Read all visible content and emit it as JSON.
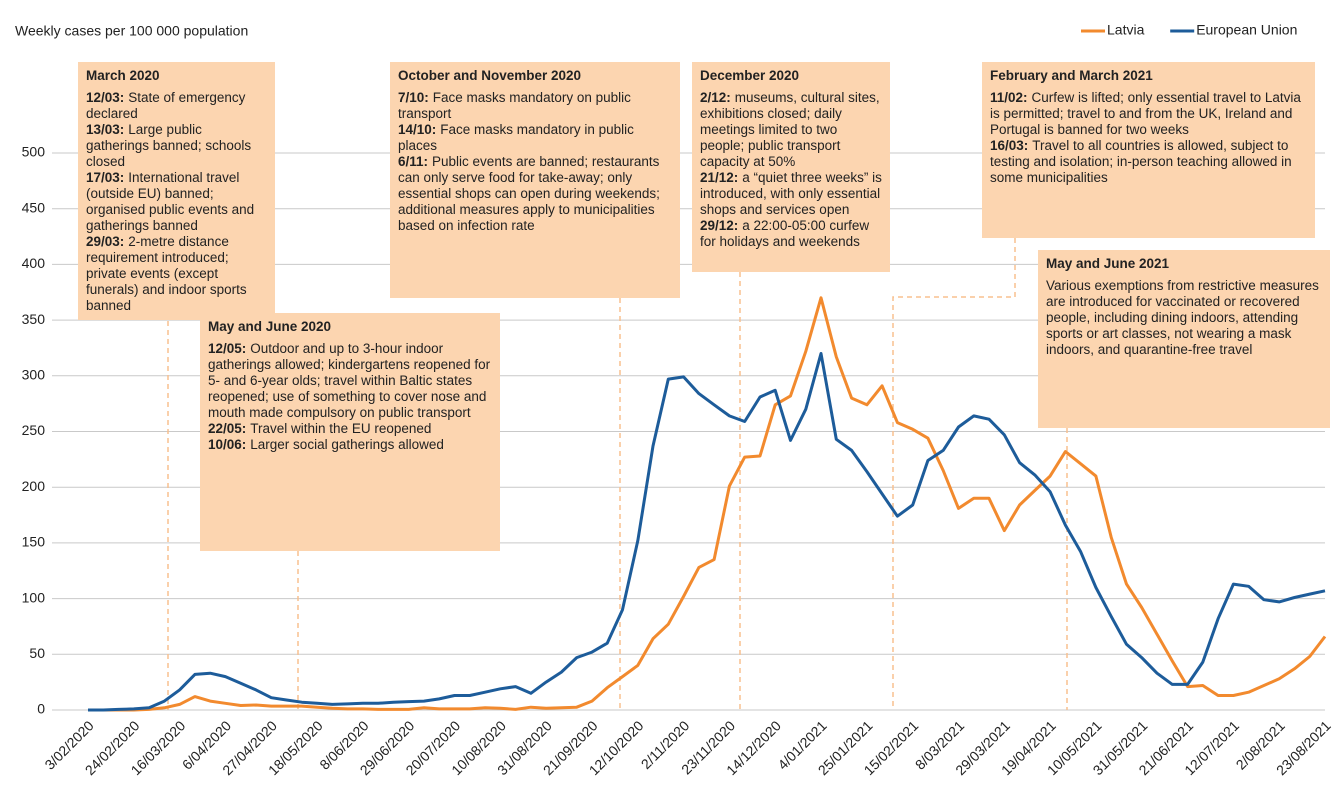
{
  "chart_data": {
    "type": "line",
    "y_label": "Weekly cases per 100 000 population",
    "legend": "top-right",
    "grid": true,
    "ylim": [
      0,
      500
    ],
    "yticks": [
      0,
      50,
      100,
      150,
      200,
      250,
      300,
      350,
      400,
      450,
      500
    ],
    "categories": [
      "3/02/2020",
      null,
      null,
      "24/02/2020",
      null,
      null,
      "16/03/2020",
      null,
      null,
      "6/04/2020",
      null,
      null,
      "27/04/2020",
      null,
      null,
      "18/05/2020",
      null,
      null,
      "8/06/2020",
      null,
      null,
      "29/06/2020",
      null,
      null,
      "20/07/2020",
      null,
      null,
      "10/08/2020",
      null,
      null,
      "31/08/2020",
      null,
      null,
      "21/09/2020",
      null,
      null,
      "12/10/2020",
      null,
      null,
      "2/11/2020",
      null,
      null,
      "23/11/2020",
      null,
      null,
      "14/12/2020",
      null,
      null,
      "4/01/2021",
      null,
      null,
      "25/01/2021",
      null,
      null,
      "15/02/2021",
      null,
      null,
      "8/03/2021",
      null,
      null,
      "29/03/2021",
      null,
      null,
      "19/04/2021",
      null,
      null,
      "10/05/2021",
      null,
      null,
      "31/05/2021",
      null,
      null,
      "21/06/2021",
      null,
      null,
      "12/07/2021",
      null,
      null,
      "2/08/2021",
      null,
      null,
      "23/08/2021"
    ],
    "series": [
      {
        "name": "Latvia",
        "color": "#f28a2e",
        "values": [
          0,
          0,
          0,
          0,
          0.5,
          2,
          5,
          12,
          8,
          6,
          4,
          4.5,
          3.5,
          3.5,
          3.5,
          2.5,
          1.5,
          1,
          1,
          0.5,
          0.5,
          0.5,
          2,
          1,
          1,
          1,
          2,
          1.5,
          0.5,
          2.5,
          1.5,
          2,
          2.5,
          8,
          20,
          30,
          40,
          64,
          77,
          102,
          128,
          135,
          201,
          227,
          228,
          274,
          282,
          322,
          370,
          317,
          280,
          274,
          291,
          258,
          252,
          244,
          215,
          181,
          190,
          190,
          161,
          184,
          197,
          210,
          232,
          221,
          210,
          155,
          113,
          92,
          68,
          44,
          21,
          22,
          13,
          13,
          16,
          22,
          28,
          37,
          48,
          66
        ]
      },
      {
        "name": "European Union",
        "color": "#1d5c9a",
        "values": [
          0,
          0,
          0.5,
          1,
          2,
          8,
          18,
          32,
          33,
          30,
          24,
          18,
          11,
          9,
          7,
          6,
          5,
          5.5,
          6,
          6,
          7,
          7.5,
          8,
          10,
          13,
          13,
          16,
          19,
          21,
          15,
          25,
          34,
          47,
          52,
          60,
          90,
          152,
          237,
          297,
          299,
          284,
          274,
          264,
          259,
          281,
          287,
          242,
          270,
          320,
          243,
          233,
          214,
          194,
          174,
          184,
          224,
          233,
          254,
          264,
          261,
          247,
          222,
          211,
          196,
          166,
          142,
          110,
          84,
          59,
          47,
          33,
          23,
          23,
          43,
          82,
          113,
          111,
          99,
          97,
          101,
          104,
          107
        ]
      }
    ],
    "annotations": [
      {
        "title": "March 2020",
        "items": [
          {
            "date": "12/03:",
            "text": "State of emergency declared"
          },
          {
            "date": "13/03:",
            "text": "Large public gatherings banned; schools closed"
          },
          {
            "date": "17/03:",
            "text": "International travel (outside EU) banned; organised public events and gatherings banned"
          },
          {
            "date": "29/03:",
            "text": "2-metre distance requirement introduced; private events (except funerals) and indoor sports banned"
          }
        ]
      },
      {
        "title": "May and June 2020",
        "items": [
          {
            "date": "12/05:",
            "text": "Outdoor and up to 3-hour indoor gatherings allowed; kindergartens reopened for 5- and 6-year olds; travel within Baltic states reopened; use of something to cover nose and mouth made compulsory on public transport"
          },
          {
            "date": "22/05:",
            "text": "Travel within the EU reopened"
          },
          {
            "date": "10/06:",
            "text": "Larger social gatherings allowed"
          }
        ]
      },
      {
        "title": "October and November 2020",
        "items": [
          {
            "date": "7/10:",
            "text": "Face masks mandatory on public transport"
          },
          {
            "date": "14/10:",
            "text": "Face masks mandatory in public places"
          },
          {
            "date": "6/11:",
            "text": "Public events are banned; restaurants can only serve food for take-away; only essential shops can open during weekends; additional measures apply to municipalities based on infection rate"
          }
        ]
      },
      {
        "title": "December 2020",
        "items": [
          {
            "date": "2/12:",
            "text": "museums, cultural sites, exhibitions closed; daily meetings limited to two people; public transport capacity at 50%"
          },
          {
            "date": "21/12:",
            "text": "a “quiet three weeks” is introduced, with only essential shops and services open"
          },
          {
            "date": "29/12:",
            "text": "a 22:00-05:00 curfew for holidays and weekends"
          }
        ]
      },
      {
        "title": "February and March 2021",
        "items": [
          {
            "date": "11/02:",
            "text": "Curfew is lifted; only essential travel to Latvia is permitted; travel to and from the UK, Ireland and Portugal is banned for two weeks"
          },
          {
            "date": "16/03:",
            "text": "Travel to all countries is allowed, subject to testing and isolation; in-person teaching allowed in some municipalities"
          }
        ]
      },
      {
        "title": "May and June 2021",
        "items": [
          {
            "text": "Various exemptions from restrictive measures are introduced for vaccinated or recovered people, including dining indoors, attending sports or art classes, not wearing a mask indoors, and quarantine-free travel"
          }
        ]
      }
    ]
  }
}
